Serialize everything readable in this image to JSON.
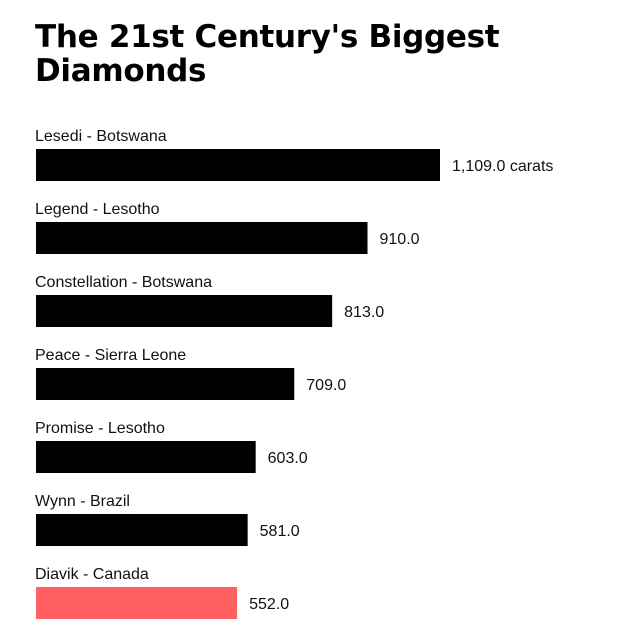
{
  "title": "The 21st Century's Biggest Diamonds",
  "chart_data": {
    "type": "bar",
    "orientation": "horizontal",
    "categories": [
      "Lesedi - Botswana",
      "Legend - Lesotho",
      "Constellation - Botswana",
      "Peace - Sierra Leone",
      "Promise - Lesotho",
      "Wynn - Brazil",
      "Diavik - Canada"
    ],
    "values": [
      1109.0,
      910.0,
      813.0,
      709.0,
      603.0,
      581.0,
      552.0
    ],
    "value_labels": [
      "1,109.0 carats",
      "910.0",
      "813.0",
      "709.0",
      "603.0",
      "581.0",
      "552.0"
    ],
    "unit": "carats",
    "bar_color": "#000000",
    "highlight_color": "#ff6163",
    "highlight_index": 6,
    "xlim": [
      0,
      1109
    ],
    "grid": false,
    "legend": "none"
  }
}
